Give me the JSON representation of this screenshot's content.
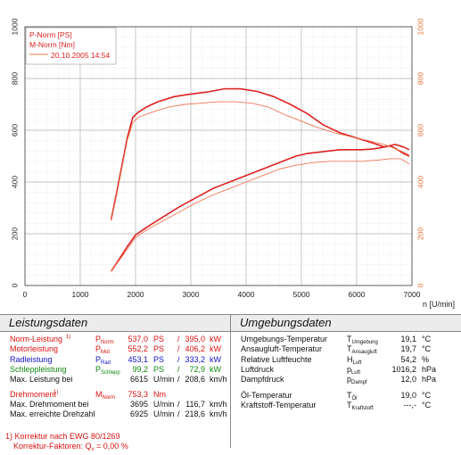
{
  "chart_data": {
    "type": "line",
    "xlabel": "n [U/min]",
    "x_ticks": [
      "0",
      "1000",
      "2000",
      "3000",
      "4000",
      "5000",
      "6000",
      "7000"
    ],
    "yleft_ticks": [
      "0",
      "200",
      "400",
      "600",
      "800",
      "1000"
    ],
    "yright_ticks": [
      "0",
      "200",
      "400",
      "600",
      "800",
      "1000"
    ],
    "xlim": [
      0,
      7000
    ],
    "ylim_left": [
      0,
      1000
    ],
    "ylim_right": [
      0,
      1000
    ],
    "grid": true,
    "legend_position": "top-left",
    "legend": {
      "line1": "P-Norm [PS]",
      "line2": "M-Norm [Nm]",
      "line3": "20.10.2005 14:54"
    },
    "series": [
      {
        "name": "P-Norm [PS]",
        "color": "#dd2222",
        "width": 1.6,
        "x": [
          1560,
          1700,
          1850,
          2000,
          2200,
          2500,
          2800,
          3100,
          3400,
          3700,
          4000,
          4300,
          4600,
          4900,
          5100,
          5300,
          5500,
          5700,
          5900,
          6100,
          6300,
          6500,
          6600,
          6700,
          6850,
          6950
        ],
        "y": [
          55,
          100,
          150,
          195,
          225,
          265,
          305,
          340,
          375,
          400,
          425,
          450,
          475,
          500,
          510,
          515,
          520,
          525,
          525,
          525,
          528,
          535,
          540,
          530,
          510,
          500
        ]
      },
      {
        "name": "M-Norm [Nm]",
        "color": "#dd2222",
        "width": 1.6,
        "x": [
          1560,
          1650,
          1750,
          1850,
          1950,
          2050,
          2200,
          2400,
          2700,
          3000,
          3300,
          3600,
          3900,
          4200,
          4500,
          4800,
          5100,
          5400,
          5700,
          6000,
          6300,
          6500,
          6700,
          6850,
          6950
        ],
        "y": [
          255,
          350,
          460,
          570,
          650,
          670,
          690,
          710,
          730,
          740,
          748,
          760,
          760,
          750,
          730,
          700,
          665,
          620,
          590,
          570,
          550,
          535,
          545,
          535,
          525
        ]
      },
      {
        "name": "P",
        "color": "#ee7755",
        "width": 0.9,
        "x": [
          1560,
          1700,
          1850,
          2000,
          2200,
          2500,
          2800,
          3100,
          3400,
          3700,
          4000,
          4300,
          4600,
          4900,
          5200,
          5500,
          5800,
          6100,
          6400,
          6600,
          6800,
          6950
        ],
        "y": [
          55,
          95,
          140,
          185,
          215,
          250,
          285,
          320,
          350,
          375,
          400,
          425,
          450,
          465,
          475,
          480,
          480,
          480,
          485,
          490,
          490,
          470
        ]
      },
      {
        "name": "M",
        "color": "#ee7755",
        "width": 0.9,
        "x": [
          1560,
          1650,
          1750,
          1850,
          1950,
          2050,
          2300,
          2600,
          2900,
          3200,
          3500,
          3800,
          4100,
          4400,
          4700,
          5000,
          5300,
          5600,
          5900,
          6200,
          6500,
          6800,
          6950
        ],
        "y": [
          250,
          340,
          450,
          560,
          630,
          650,
          670,
          690,
          700,
          705,
          710,
          710,
          705,
          690,
          660,
          635,
          610,
          590,
          575,
          560,
          545,
          520,
          505
        ]
      }
    ]
  },
  "left_panel": {
    "title": "Leistungsdaten",
    "rows": [
      {
        "label": "Norm-Leistung",
        "mark": "1)",
        "sym": "P",
        "sub": "Norm",
        "v1": "537,0",
        "u1": "PS",
        "sep": "/",
        "v2": "395,0",
        "u2": "kW",
        "color": "#dd1111"
      },
      {
        "label": "Motorleistung",
        "mark": "",
        "sym": "P",
        "sub": "Mot",
        "v1": "552,2",
        "u1": "PS",
        "sep": "/",
        "v2": "406,2",
        "u2": "kW",
        "color": "#dd1111"
      },
      {
        "label": "Radleistung",
        "mark": "",
        "sym": "P",
        "sub": "Rad",
        "v1": "453,1",
        "u1": "PS",
        "sep": "/",
        "v2": "333,2",
        "u2": "kW",
        "color": "#1111cc"
      },
      {
        "label": "Schleppleistung",
        "mark": "",
        "sym": "P",
        "sub": "Schlepp",
        "v1": "99,2",
        "u1": "PS",
        "sep": "/",
        "v2": "72,9",
        "u2": "kW",
        "color": "#118811"
      },
      {
        "label": "Max. Leistung bei",
        "mark": "",
        "sym": "",
        "sub": "",
        "v1": "6615",
        "u1": "U/min",
        "sep": "/",
        "v2": "208,6",
        "u2": "km/h",
        "color": "#111111"
      },
      {
        "label": "Drehmoment",
        "mark": "1)",
        "sym": "M",
        "sub": "Norm",
        "v1": "753,3",
        "u1": "Nm",
        "sep": "",
        "v2": "",
        "u2": "",
        "color": "#dd1111"
      },
      {
        "label": "Max. Drehmoment bei",
        "mark": "",
        "sym": "",
        "sub": "",
        "v1": "3695",
        "u1": "U/min",
        "sep": "/",
        "v2": "116,7",
        "u2": "km/h",
        "color": "#111111"
      },
      {
        "label": "Max. erreichte Drehzahl",
        "mark": "",
        "sym": "",
        "sub": "",
        "v1": "6925",
        "u1": "U/min",
        "sep": "/",
        "v2": "218,6",
        "u2": "km/h",
        "color": "#111111"
      }
    ],
    "footnote1": "1) Korrektur nach EWG 80/1269",
    "footnote2_pre": "Korrektur-Faktoren: Q",
    "footnote2_sub": "v",
    "footnote2_post": " =   0,00 %"
  },
  "right_panel": {
    "title": "Umgebungsdaten",
    "rows": [
      {
        "label": "Umgebungs-Temperatur",
        "sym": "T",
        "sub": "Umgebung",
        "val": "19,1",
        "unit": "°C"
      },
      {
        "label": "Ansaugluft-Temperatur",
        "sym": "T",
        "sub": "Ansaugluft",
        "val": "19,7",
        "unit": "°C"
      },
      {
        "label": "Relative Luftfeuchte",
        "sym": "H",
        "sub": "Luft",
        "val": "54,2",
        "unit": "%"
      },
      {
        "label": "Luftdruck",
        "sym": "p",
        "sub": "Luft",
        "val": "1016,2",
        "unit": "hPa"
      },
      {
        "label": "Dampfdruck",
        "sym": "p",
        "sub": "Dampf",
        "val": "12,0",
        "unit": "hPa"
      },
      {
        "label": "Öl-Temperatur",
        "sym": "T",
        "sub": "Öl",
        "val": "19,0",
        "unit": "°C"
      },
      {
        "label": "Kraftstoff-Temperatur",
        "sym": "T",
        "sub": "Kraftstoff",
        "val": "---,-",
        "unit": "°C"
      }
    ]
  }
}
